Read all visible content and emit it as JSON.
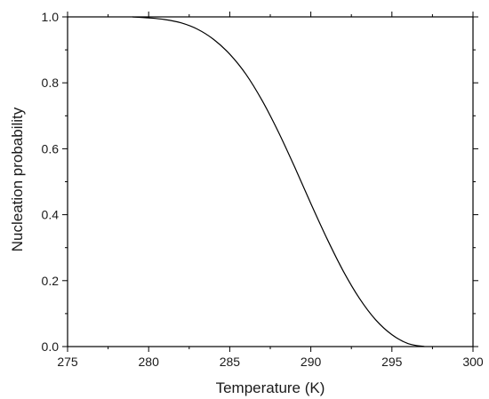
{
  "chart_data": {
    "type": "line",
    "xlabel": "Temperature (K)",
    "ylabel": "Nucleation probability",
    "xlim": [
      275,
      300
    ],
    "ylim": [
      0.0,
      1.0
    ],
    "x_ticks": [
      275,
      280,
      285,
      290,
      295,
      300
    ],
    "x_tick_labels": [
      "275",
      "280",
      "285",
      "290",
      "295",
      "300"
    ],
    "y_ticks": [
      0.0,
      0.2,
      0.4,
      0.6,
      0.8,
      1.0
    ],
    "y_tick_labels": [
      "0.0",
      "0.2",
      "0.4",
      "0.6",
      "0.8",
      "1.0"
    ],
    "grid": false,
    "series": [
      {
        "color": "#000000",
        "x": [
          279,
          280,
          281,
          282,
          283,
          284,
          285,
          286,
          287,
          288,
          289,
          290,
          291,
          292,
          293,
          294,
          295,
          296,
          297
        ],
        "y": [
          1.0,
          0.997,
          0.992,
          0.982,
          0.963,
          0.932,
          0.887,
          0.826,
          0.746,
          0.651,
          0.545,
          0.434,
          0.327,
          0.229,
          0.146,
          0.081,
          0.036,
          0.009,
          0.0
        ]
      }
    ]
  }
}
